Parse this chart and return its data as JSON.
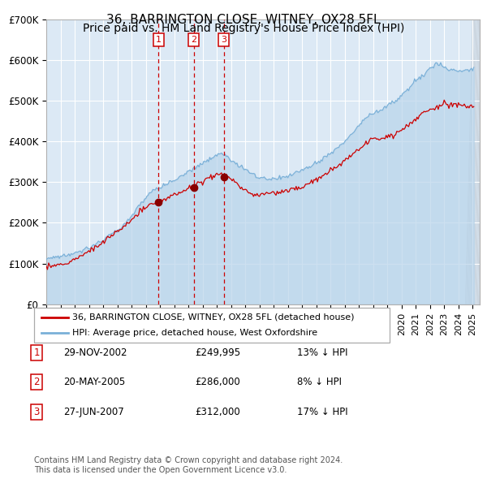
{
  "title": "36, BARRINGTON CLOSE, WITNEY, OX28 5FL",
  "subtitle": "Price paid vs. HM Land Registry's House Price Index (HPI)",
  "footnote": "Contains HM Land Registry data © Crown copyright and database right 2024.\nThis data is licensed under the Open Government Licence v3.0.",
  "legend_property": "36, BARRINGTON CLOSE, WITNEY, OX28 5FL (detached house)",
  "legend_hpi": "HPI: Average price, detached house, West Oxfordshire",
  "transactions": [
    {
      "num": 1,
      "date": "29-NOV-2002",
      "price": 249995,
      "hpi_diff": "13% ↓ HPI"
    },
    {
      "num": 2,
      "date": "20-MAY-2005",
      "price": 286000,
      "hpi_diff": "8% ↓ HPI"
    },
    {
      "num": 3,
      "date": "27-JUN-2007",
      "price": 312000,
      "hpi_diff": "17% ↓ HPI"
    }
  ],
  "transaction_dates_decimal": [
    2002.91,
    2005.38,
    2007.49
  ],
  "ylim": [
    0,
    700000
  ],
  "yticks": [
    0,
    100000,
    200000,
    300000,
    400000,
    500000,
    600000,
    700000
  ],
  "ytick_labels": [
    "£0",
    "£100K",
    "£200K",
    "£300K",
    "£400K",
    "£500K",
    "£600K",
    "£700K"
  ],
  "xlim_start": 1995.0,
  "xlim_end": 2025.5,
  "background_color": "#dce9f5",
  "grid_color": "#ffffff",
  "hpi_color": "#7ab0d8",
  "hpi_fill_color": "#b8d4ea",
  "property_color": "#cc0000",
  "dashed_line_color": "#cc0000",
  "transaction_marker_color": "#880000",
  "box_color": "#cc0000",
  "hatch_color": "#c0c8d0",
  "title_fontsize": 11,
  "subtitle_fontsize": 10,
  "tick_fontsize": 8.5,
  "legend_fontsize": 8,
  "table_fontsize": 8.5,
  "footnote_fontsize": 7
}
